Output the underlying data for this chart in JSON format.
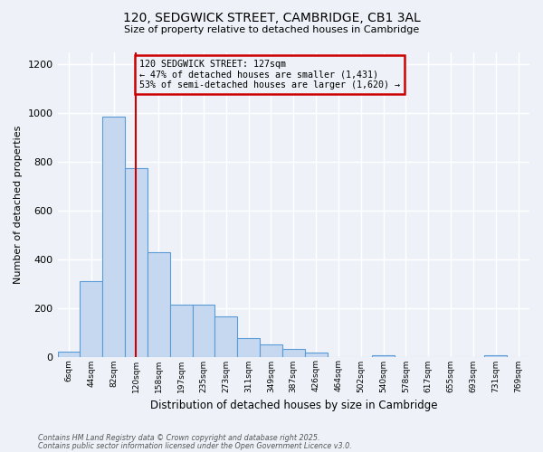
{
  "title1": "120, SEDGWICK STREET, CAMBRIDGE, CB1 3AL",
  "title2": "Size of property relative to detached houses in Cambridge",
  "xlabel": "Distribution of detached houses by size in Cambridge",
  "ylabel": "Number of detached properties",
  "bin_labels": [
    "6sqm",
    "44sqm",
    "82sqm",
    "120sqm",
    "158sqm",
    "197sqm",
    "235sqm",
    "273sqm",
    "311sqm",
    "349sqm",
    "387sqm",
    "426sqm",
    "464sqm",
    "502sqm",
    "540sqm",
    "578sqm",
    "617sqm",
    "655sqm",
    "693sqm",
    "731sqm",
    "769sqm"
  ],
  "bin_values": [
    20,
    310,
    985,
    775,
    430,
    215,
    215,
    165,
    75,
    50,
    30,
    15,
    0,
    0,
    5,
    0,
    0,
    0,
    0,
    5,
    0
  ],
  "bar_color": "#c5d8f0",
  "bar_edge_color": "#5b9bd5",
  "vline_x_index": 3,
  "vline_color": "#cc0000",
  "annotation_line1": "120 SEDGWICK STREET: 127sqm",
  "annotation_line2": "← 47% of detached houses are smaller (1,431)",
  "annotation_line3": "53% of semi-detached houses are larger (1,620) →",
  "annotation_box_color": "#cc0000",
  "ylim": [
    0,
    1250
  ],
  "yticks": [
    0,
    200,
    400,
    600,
    800,
    1000,
    1200
  ],
  "footer1": "Contains HM Land Registry data © Crown copyright and database right 2025.",
  "footer2": "Contains public sector information licensed under the Open Government Licence v3.0.",
  "bg_color": "#eef2f8"
}
